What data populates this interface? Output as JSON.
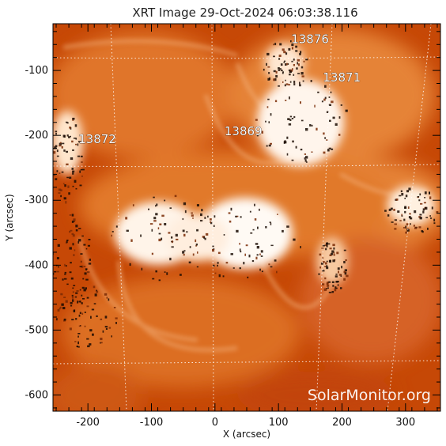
{
  "title": "XRT Image 29-Oct-2024 06:03:38.116",
  "xlabel": "X (arcsec)",
  "ylabel": "Y (arcsec)",
  "xlim": [
    -255,
    355
  ],
  "ylim": [
    -625,
    -28
  ],
  "x_ticks": [
    "-200",
    "-100",
    "0",
    "100",
    "200",
    "300"
  ],
  "y_ticks": [
    "-100",
    "-200",
    "-300",
    "-400",
    "-500",
    "-600"
  ],
  "active_regions": [
    {
      "label": "13876",
      "x": 120,
      "y": -58
    },
    {
      "label": "13871",
      "x": 170,
      "y": -117
    },
    {
      "label": "13869",
      "x": 15,
      "y": -200
    },
    {
      "label": "13872",
      "x": -215,
      "y": -212
    }
  ],
  "watermark": "SolarMonitor.org",
  "colors": {
    "background": "#c84a08",
    "bright": "#ffffff",
    "frame": "#000000"
  }
}
